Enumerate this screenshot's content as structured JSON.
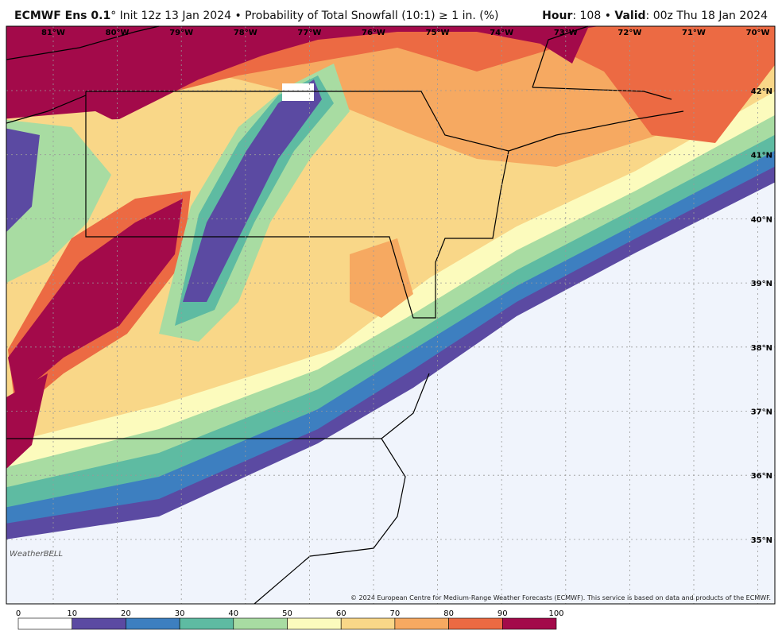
{
  "header": {
    "model": "ECMWF Ens 0.1",
    "description": "° Init 12z 13 Jan 2024 • Probability of Total Snowfall (10:1) ≥ 1 in. (%)",
    "hour_label": "Hour",
    "hour_value": ": 108 • ",
    "valid_label": "Valid",
    "valid_value": ": 00z Thu 18 Jan 2024"
  },
  "map": {
    "lon_labels": [
      "81°W",
      "80°W",
      "79°W",
      "78°W",
      "77°W",
      "76°W",
      "75°W",
      "74°W",
      "73°W",
      "72°W",
      "71°W",
      "70°W"
    ],
    "lat_labels": [
      "42°N",
      "41°N",
      "40°N",
      "39°N",
      "38°N",
      "37°N",
      "36°N",
      "35°N"
    ],
    "logo": "WeatherBELL",
    "copyright": "© 2024 European Centre for Medium-Range Weather Forecasts (ECMWF). This service is based on data and products of the ECMWF."
  },
  "colorbar": {
    "ticks": [
      0,
      10,
      20,
      30,
      40,
      50,
      60,
      70,
      80,
      90,
      100
    ],
    "colors": [
      "#ffffff",
      "#5b4aa2",
      "#3d7fc0",
      "#5ebba2",
      "#a8dca2",
      "#fcfbbd",
      "#f9d788",
      "#f6a961",
      "#ec6a43",
      "#a30a4a"
    ]
  }
}
